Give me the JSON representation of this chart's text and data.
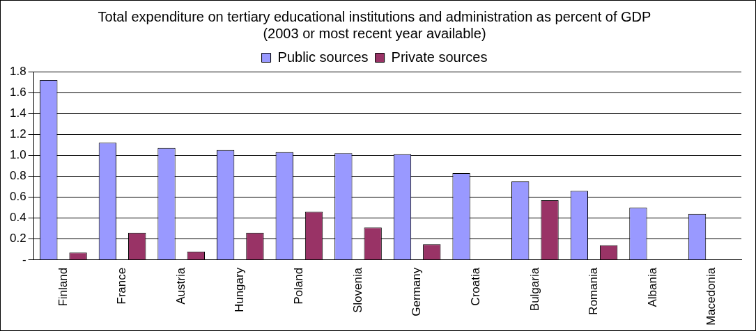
{
  "chart_data": {
    "type": "bar",
    "title": "Total expenditure on tertiary educational institutions and administration as percent of GDP (2003 or most recent year available)",
    "categories": [
      "Finland",
      "France",
      "Austria",
      "Hungary",
      "Poland",
      "Slovenia",
      "Germany",
      "Croatia",
      "Bulgaria",
      "Romania",
      "Albania",
      "Macedonia"
    ],
    "series": [
      {
        "name": "Public sources",
        "color": "#9999ff",
        "values": [
          1.72,
          1.12,
          1.07,
          1.05,
          1.03,
          1.02,
          1.01,
          0.83,
          0.75,
          0.66,
          0.5,
          0.44
        ]
      },
      {
        "name": "Private sources",
        "color": "#993366",
        "values": [
          0.07,
          0.26,
          0.08,
          0.26,
          0.46,
          0.31,
          0.15,
          null,
          0.57,
          0.14,
          null,
          null
        ]
      }
    ],
    "ylim": [
      0,
      1.8
    ],
    "yticks": [
      {
        "value": 0,
        "label": "-"
      },
      0.2,
      0.4,
      0.6,
      0.8,
      {
        "value": 1,
        "label": "1.0"
      },
      1.2,
      1.4,
      1.6,
      1.8
    ],
    "grid": "y",
    "legend": "top"
  }
}
